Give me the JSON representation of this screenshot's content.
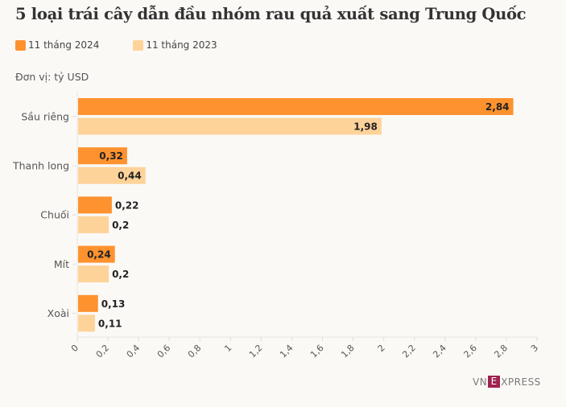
{
  "chart_data": {
    "type": "bar",
    "orientation": "horizontal",
    "title": "5 loại trái cây dẫn đầu nhóm rau quả xuất sang Trung Quốc",
    "unit_label": "Đơn vị: tỷ USD",
    "categories": [
      "Sầu riêng",
      "Thanh long",
      "Chuối",
      "Mít",
      "Xoài"
    ],
    "series": [
      {
        "name": "11 tháng 2024",
        "color": "#fd922f",
        "values": [
          2.84,
          0.32,
          0.22,
          0.24,
          0.13
        ],
        "labels": [
          "2,84",
          "0,32",
          "0,22",
          "0,24",
          "0,13"
        ]
      },
      {
        "name": "11 tháng 2023",
        "color": "#fed39a",
        "values": [
          1.98,
          0.44,
          0.2,
          0.2,
          0.11
        ],
        "labels": [
          "1,98",
          "0,44",
          "0,2",
          "0,2",
          "0,11"
        ]
      }
    ],
    "xlim": [
      0,
      3
    ],
    "xticks": [
      0,
      0.2,
      0.4,
      0.6,
      0.8,
      1,
      1.2,
      1.4,
      1.6,
      1.8,
      2,
      2.2,
      2.4,
      2.6,
      2.8,
      3
    ],
    "xtick_labels": [
      "0",
      "0,2",
      "0,4",
      "0,6",
      "0,8",
      "1",
      "1,2",
      "1,4",
      "1,6",
      "1,8",
      "2",
      "2,2",
      "2,4",
      "2,6",
      "2,8",
      "3"
    ],
    "legend": "top-left",
    "grid": false
  },
  "source_logo": "VNEXPRESS"
}
